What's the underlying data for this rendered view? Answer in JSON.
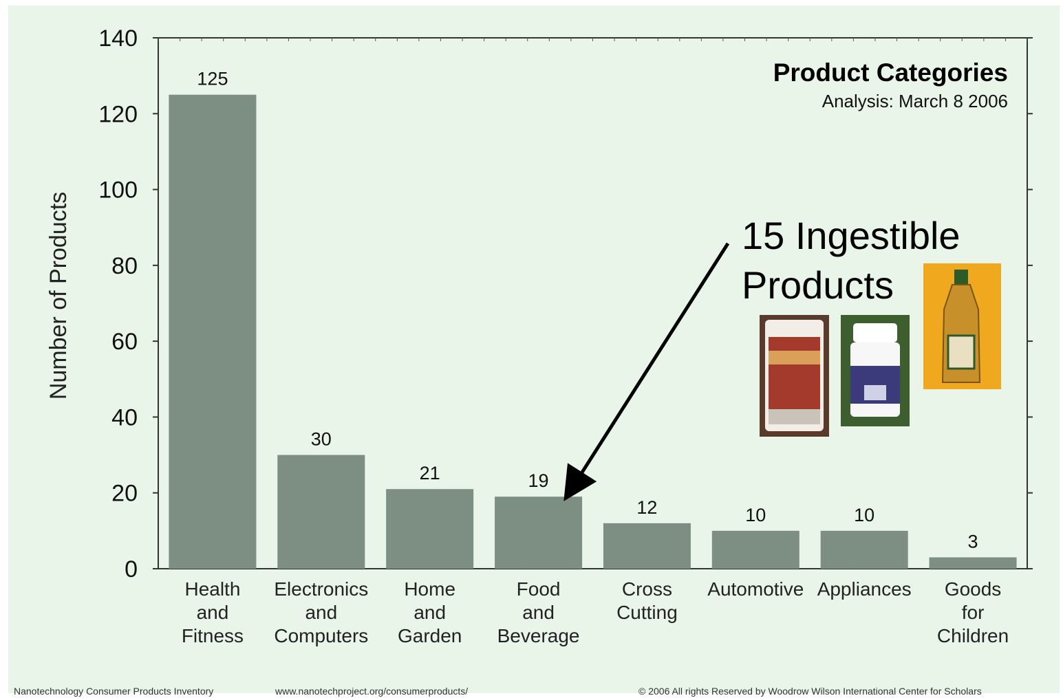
{
  "chart_data": {
    "type": "bar",
    "title": "Product Categories",
    "subtitle": "Analysis: March 8 2006",
    "ylabel": "Number of Products",
    "xlabel": "",
    "ylim": [
      0,
      140
    ],
    "yticks": [
      0,
      20,
      40,
      60,
      80,
      100,
      120,
      140
    ],
    "categories": [
      [
        "Health",
        "and",
        "Fitness"
      ],
      [
        "Electronics",
        "and",
        "Computers"
      ],
      [
        "Home",
        "and",
        "Garden"
      ],
      [
        "Food",
        "and",
        "Beverage"
      ],
      [
        "Cross",
        "Cutting"
      ],
      [
        "Automotive"
      ],
      [
        "Appliances"
      ],
      [
        "Goods",
        "for",
        "Children"
      ]
    ],
    "values": [
      125,
      30,
      21,
      19,
      12,
      10,
      10,
      3
    ],
    "grid": false,
    "bar_color": "#7d8e82",
    "annotation": {
      "lines": [
        "15 Ingestible",
        "Products"
      ],
      "points_to_category": "Food and Beverage"
    }
  },
  "footer": {
    "left": "Nanotechnology Consumer Products Inventory",
    "middle": "www.nanotechproject.org/consumerproducts/",
    "right": "© 2006 All rights Reserved by Woodrow Wilson International Center for Scholars"
  },
  "colors": {
    "background": "#eaf5ea",
    "bar": "#7d8e82",
    "axis": "#333333"
  }
}
